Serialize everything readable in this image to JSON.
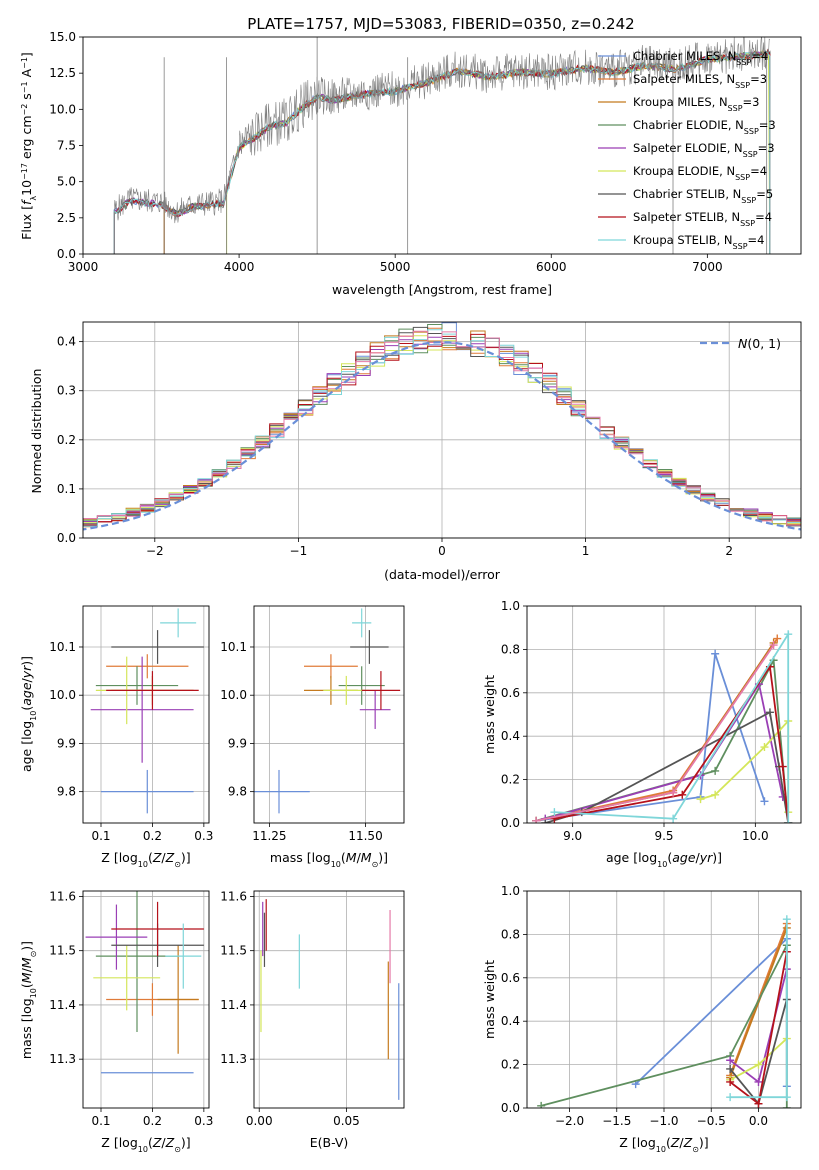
{
  "figure_title": "PLATE=1757, MJD=53083, FIBERID=0350, z=0.242",
  "colors": {
    "Chabrier MILES": "#6a8fd8",
    "Salpeter MILES": "#e07b39",
    "Kroupa MILES": "#c47a1e",
    "Chabrier ELODIE": "#5f8f5f",
    "Salpeter ELODIE": "#9a3fb5",
    "Kroupa ELODIE": "#d4e65a",
    "Chabrier STELIB": "#555555",
    "Salpeter STELIB": "#b5121b",
    "Kroupa STELIB": "#7fd6d9",
    "Salpeter MILES (pink)": "#e57aa8",
    "normal_curve": "#6a8fd8"
  },
  "chart_data": [
    {
      "id": "spectrum",
      "type": "line",
      "title": "PLATE=1757, MJD=53083, FIBERID=0350, z=0.242",
      "xlabel": "wavelength [Angstrom, rest frame]",
      "ylabel": "Flux [f_λ10^-17 erg cm^-2 s^-1 A^-1]",
      "xlim": [
        3000,
        7600
      ],
      "ylim": [
        0,
        15
      ],
      "xticks": [
        "3000",
        "4000",
        "5000",
        "6000",
        "7000"
      ],
      "yticks": [
        "0.0",
        "2.5",
        "5.0",
        "7.5",
        "10.0",
        "12.5",
        "15.0"
      ],
      "legend_position": "upper-right",
      "legend": [
        "Chabrier MILES, N_SSP=4",
        "Salpeter MILES, N_SSP=3",
        "Kroupa MILES, N_SSP=3",
        "Chabrier ELODIE, N_SSP=3",
        "Salpeter ELODIE, N_SSP=3",
        "Kroupa ELODIE, N_SSP=4",
        "Chabrier STELIB, N_SSP=5",
        "Salpeter STELIB, N_SSP=4",
        "Kroupa STELIB, N_SSP=4"
      ],
      "data_envelope": {
        "x": [
          3200,
          3300,
          3400,
          3500,
          3600,
          3700,
          3800,
          3900,
          4000,
          4100,
          4200,
          4300,
          4400,
          4500,
          4600,
          4800,
          5000,
          5200,
          5400,
          5600,
          5800,
          6000,
          6200,
          6400,
          6600,
          6800,
          7000,
          7200,
          7400
        ],
        "y": [
          3.0,
          3.8,
          3.7,
          3.6,
          2.9,
          3.4,
          3.5,
          3.7,
          7.5,
          8.2,
          9.0,
          9.2,
          10.2,
          11.0,
          10.8,
          11.2,
          11.4,
          12.0,
          12.8,
          12.4,
          12.7,
          12.6,
          13.0,
          12.7,
          13.2,
          12.9,
          13.6,
          13.8,
          14.0
        ]
      }
    },
    {
      "id": "residuals",
      "type": "line",
      "xlabel": "(data-model)/error",
      "ylabel": "Normed distribution",
      "xlim": [
        -2.5,
        2.5
      ],
      "ylim": [
        0,
        0.44
      ],
      "xticks": [
        "−2",
        "−1",
        "0",
        "1",
        "2"
      ],
      "yticks": [
        "0.0",
        "0.1",
        "0.2",
        "0.3",
        "0.4"
      ],
      "grid": true,
      "legend_position": "upper-right",
      "legend": [
        "N(0, 1)"
      ]
    },
    {
      "id": "age_vs_Z",
      "type": "scatter",
      "xlabel": "Z [log10(Z/Z_sun)]",
      "ylabel": "age  [log10(age/yr)]",
      "xlim": [
        0.065,
        0.31
      ],
      "ylim": [
        9.735,
        10.185
      ],
      "xticks": [
        "0.1",
        "0.2",
        "0.3"
      ],
      "yticks": [
        "9.8",
        "9.9",
        "10.0",
        "10.1"
      ],
      "grid": true,
      "points": [
        {
          "series": "Chabrier MILES",
          "x": 0.19,
          "y": 9.8,
          "xerr": 0.09,
          "yerr": 0.045
        },
        {
          "series": "Salpeter MILES",
          "x": 0.19,
          "y": 10.06,
          "xerr": 0.08,
          "yerr": 0.025
        },
        {
          "series": "Kroupa MILES",
          "x": 0.2,
          "y": 10.01,
          "xerr": 0.08,
          "yerr": 0.03
        },
        {
          "series": "Chabrier ELODIE",
          "x": 0.17,
          "y": 10.02,
          "xerr": 0.08,
          "yerr": 0.04
        },
        {
          "series": "Salpeter ELODIE",
          "x": 0.18,
          "y": 9.97,
          "xerr": 0.1,
          "yerr": 0.11
        },
        {
          "series": "Kroupa ELODIE",
          "x": 0.15,
          "y": 10.01,
          "xerr": 0.06,
          "yerr": 0.07
        },
        {
          "series": "Chabrier STELIB",
          "x": 0.21,
          "y": 10.1,
          "xerr": 0.09,
          "yerr": 0.035
        },
        {
          "series": "Salpeter STELIB",
          "x": 0.2,
          "y": 10.01,
          "xerr": 0.09,
          "yerr": 0.04
        },
        {
          "series": "Kroupa STELIB",
          "x": 0.25,
          "y": 10.15,
          "xerr": 0.035,
          "yerr": 0.03
        }
      ]
    },
    {
      "id": "age_vs_mass",
      "type": "scatter",
      "xlabel": "mass [log10(M/M_sun)]",
      "xlim": [
        11.21,
        11.6
      ],
      "ylim": [
        9.735,
        10.185
      ],
      "xticks": [
        "11.25",
        "11.50"
      ],
      "yticks": [
        "9.8",
        "9.9",
        "10.0",
        "10.1"
      ],
      "grid": true,
      "points": [
        {
          "series": "Chabrier MILES",
          "x": 11.275,
          "y": 9.8,
          "xerr": 0.08,
          "yerr": 0.045
        },
        {
          "series": "Salpeter MILES",
          "x": 11.41,
          "y": 10.06,
          "xerr": 0.07,
          "yerr": 0.025
        },
        {
          "series": "Kroupa MILES",
          "x": 11.41,
          "y": 10.01,
          "xerr": 0.07,
          "yerr": 0.03
        },
        {
          "series": "Chabrier ELODIE",
          "x": 11.49,
          "y": 10.02,
          "xerr": 0.06,
          "yerr": 0.04
        },
        {
          "series": "Salpeter ELODIE",
          "x": 11.525,
          "y": 9.97,
          "xerr": 0.04,
          "yerr": 0.04
        },
        {
          "series": "Kroupa ELODIE",
          "x": 11.45,
          "y": 10.01,
          "xerr": 0.06,
          "yerr": 0.03
        },
        {
          "series": "Chabrier STELIB",
          "x": 11.51,
          "y": 10.1,
          "xerr": 0.05,
          "yerr": 0.035
        },
        {
          "series": "Salpeter STELIB",
          "x": 11.54,
          "y": 10.01,
          "xerr": 0.05,
          "yerr": 0.04
        },
        {
          "series": "Kroupa STELIB",
          "x": 11.49,
          "y": 10.15,
          "xerr": 0.025,
          "yerr": 0.03
        }
      ]
    },
    {
      "id": "weight_vs_age",
      "type": "line",
      "xlabel": "age  [log10(age/yr)]",
      "ylabel": "mass weight",
      "xlim": [
        8.75,
        10.25
      ],
      "ylim": [
        0,
        1.0
      ],
      "xticks": [
        "9.0",
        "9.5",
        "10.0"
      ],
      "yticks": [
        "0.0",
        "0.2",
        "0.4",
        "0.6",
        "0.8",
        "1.0"
      ],
      "grid": true,
      "series": [
        {
          "key": "Chabrier MILES",
          "x": [
            8.8,
            9.7,
            9.78,
            10.05
          ],
          "y": [
            0.01,
            0.12,
            0.78,
            0.1
          ]
        },
        {
          "key": "Salpeter MILES",
          "x": [
            8.8,
            9.55,
            10.12
          ],
          "y": [
            0.01,
            0.15,
            0.85
          ]
        },
        {
          "key": "Kroupa MILES",
          "x": [
            8.8,
            9.55,
            10.1
          ],
          "y": [
            0.01,
            0.14,
            0.83
          ]
        },
        {
          "key": "Chabrier ELODIE",
          "x": [
            8.8,
            9.78,
            10.1,
            10.18
          ],
          "y": [
            0.01,
            0.24,
            0.75,
            0.0
          ]
        },
        {
          "key": "Salpeter ELODIE",
          "x": [
            8.85,
            9.7,
            10.02,
            10.15
          ],
          "y": [
            0.02,
            0.22,
            0.64,
            0.12
          ]
        },
        {
          "key": "Kroupa ELODIE",
          "x": [
            9.7,
            9.78,
            10.05,
            10.18,
            10.18
          ],
          "y": [
            0.11,
            0.13,
            0.35,
            0.47,
            0.05
          ]
        },
        {
          "key": "Chabrier STELIB",
          "x": [
            8.85,
            9.05,
            10.08,
            10.13,
            10.18
          ],
          "y": [
            0.0,
            0.05,
            0.51,
            0.26,
            0.0
          ]
        },
        {
          "key": "Salpeter STELIB",
          "x": [
            8.9,
            9.6,
            10.08,
            10.15,
            10.18
          ],
          "y": [
            0.02,
            0.13,
            0.72,
            0.26,
            0.0
          ]
        },
        {
          "key": "Kroupa STELIB",
          "x": [
            8.9,
            9.55,
            10.18,
            10.18
          ],
          "y": [
            0.05,
            0.02,
            0.87,
            0.0
          ]
        },
        {
          "key": "Salpeter MILES (pink)",
          "x": [
            8.8,
            9.55,
            10.1
          ],
          "y": [
            0.01,
            0.14,
            0.82
          ]
        }
      ]
    },
    {
      "id": "mass_vs_Z",
      "type": "scatter",
      "xlabel": "Z [log10(Z/Z_sun)]",
      "ylabel": "mass [log10(M/M_sun)]",
      "xlim": [
        0.065,
        0.31
      ],
      "ylim": [
        11.21,
        11.61
      ],
      "xticks": [
        "0.1",
        "0.2",
        "0.3"
      ],
      "yticks": [
        "11.3",
        "11.4",
        "11.5",
        "11.6"
      ],
      "grid": true,
      "points": [
        {
          "series": "Chabrier MILES",
          "x": 0.19,
          "y": 11.275,
          "xerr": 0.09,
          "yerr": 0.0
        },
        {
          "series": "Salpeter MILES",
          "x": 0.2,
          "y": 11.41,
          "xerr": 0.09,
          "yerr": 0.03
        },
        {
          "series": "Kroupa MILES",
          "x": 0.25,
          "y": 11.41,
          "xerr": 0.04,
          "yerr": 0.1
        },
        {
          "series": "Chabrier ELODIE",
          "x": 0.17,
          "y": 11.49,
          "xerr": 0.08,
          "yerr": 0.14
        },
        {
          "series": "Salpeter ELODIE",
          "x": 0.13,
          "y": 11.525,
          "xerr": 0.06,
          "yerr": 0.06
        },
        {
          "series": "Kroupa ELODIE",
          "x": 0.15,
          "y": 11.45,
          "xerr": 0.065,
          "yerr": 0.06
        },
        {
          "series": "Chabrier STELIB",
          "x": 0.21,
          "y": 11.51,
          "xerr": 0.09,
          "yerr": 0.04
        },
        {
          "series": "Salpeter STELIB",
          "x": 0.21,
          "y": 11.54,
          "xerr": 0.09,
          "yerr": 0.05
        },
        {
          "series": "Kroupa STELIB",
          "x": 0.26,
          "y": 11.49,
          "xerr": 0.035,
          "yerr": 0.06
        }
      ]
    },
    {
      "id": "mass_vs_EBV",
      "type": "scatter",
      "xlabel": "E(B-V)",
      "xlim": [
        -0.003,
        0.083
      ],
      "ylim": [
        11.21,
        11.61
      ],
      "xticks": [
        "0.00",
        "0.05"
      ],
      "yticks": [
        "11.3",
        "11.4",
        "11.5",
        "11.6"
      ],
      "grid": true,
      "segments": [
        {
          "series": "Chabrier MILES",
          "x": 0.08,
          "y0": 11.225,
          "y1": 11.44
        },
        {
          "series": "Kroupa MILES",
          "x": 0.074,
          "y0": 11.3,
          "y1": 11.48
        },
        {
          "series": "Salpeter MILES (pink)",
          "x": 0.075,
          "y0": 11.44,
          "y1": 11.575
        },
        {
          "series": "Kroupa STELIB",
          "x": 0.023,
          "y0": 11.43,
          "y1": 11.53
        },
        {
          "series": "Kroupa ELODIE",
          "x": 0.001,
          "y0": 11.35,
          "y1": 11.5
        },
        {
          "series": "Salpeter ELODIE",
          "x": 0.002,
          "y0": 11.49,
          "y1": 11.59
        },
        {
          "series": "Salpeter STELIB",
          "x": 0.004,
          "y0": 11.5,
          "y1": 11.595
        },
        {
          "series": "Chabrier STELIB",
          "x": 0.003,
          "y0": 11.47,
          "y1": 11.57
        }
      ]
    },
    {
      "id": "weight_vs_Z",
      "type": "line",
      "xlabel": "Z [log10(Z/Z_sun)]",
      "ylabel": "mass weight",
      "xlim": [
        -2.45,
        0.45
      ],
      "ylim": [
        0,
        1.0
      ],
      "xticks": [
        "−2.0",
        "−1.5",
        "−1.0",
        "−0.5",
        "0.0"
      ],
      "yticks": [
        "0.0",
        "0.2",
        "0.4",
        "0.6",
        "0.8",
        "1.0"
      ],
      "grid": true,
      "series": [
        {
          "key": "Chabrier MILES",
          "x": [
            -1.3,
            0.3,
            0.3
          ],
          "y": [
            0.11,
            0.78,
            0.1
          ]
        },
        {
          "key": "Salpeter MILES",
          "x": [
            -0.3,
            0.3
          ],
          "y": [
            0.15,
            0.85
          ]
        },
        {
          "key": "Kroupa MILES",
          "x": [
            -0.3,
            0.3
          ],
          "y": [
            0.14,
            0.83
          ]
        },
        {
          "key": "Chabrier ELODIE",
          "x": [
            -2.3,
            -0.3,
            0.3,
            0.3
          ],
          "y": [
            0.01,
            0.24,
            0.75,
            0.0
          ]
        },
        {
          "key": "Salpeter ELODIE",
          "x": [
            -0.3,
            0.0,
            0.3
          ],
          "y": [
            0.22,
            0.12,
            0.64
          ]
        },
        {
          "key": "Kroupa ELODIE",
          "x": [
            -0.3,
            0.0,
            0.3
          ],
          "y": [
            0.13,
            0.2,
            0.32
          ]
        },
        {
          "key": "Chabrier STELIB",
          "x": [
            -0.3,
            0.0,
            0.3
          ],
          "y": [
            0.18,
            0.02,
            0.5
          ]
        },
        {
          "key": "Salpeter STELIB",
          "x": [
            -0.3,
            0.0,
            0.3
          ],
          "y": [
            0.12,
            0.02,
            0.72
          ]
        },
        {
          "key": "Kroupa STELIB",
          "x": [
            -0.3,
            0.3,
            0.3
          ],
          "y": [
            0.05,
            0.05,
            0.87
          ]
        }
      ]
    }
  ]
}
